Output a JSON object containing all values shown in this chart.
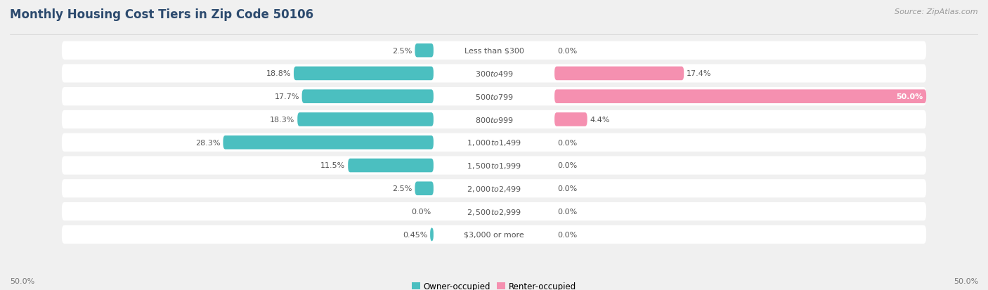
{
  "title": "Monthly Housing Cost Tiers in Zip Code 50106",
  "source": "Source: ZipAtlas.com",
  "categories": [
    "Less than $300",
    "$300 to $499",
    "$500 to $799",
    "$800 to $999",
    "$1,000 to $1,499",
    "$1,500 to $1,999",
    "$2,000 to $2,499",
    "$2,500 to $2,999",
    "$3,000 or more"
  ],
  "owner_values": [
    2.5,
    18.8,
    17.7,
    18.3,
    28.3,
    11.5,
    2.5,
    0.0,
    0.45
  ],
  "renter_values": [
    0.0,
    17.4,
    50.0,
    4.4,
    0.0,
    0.0,
    0.0,
    0.0,
    0.0
  ],
  "owner_color": "#4BBFC0",
  "renter_color": "#F590B0",
  "axis_max": 50.0,
  "bg_color": "#f0f0f0",
  "bar_bg_color": "#ffffff",
  "title_color": "#2c4a6e",
  "title_fontsize": 12,
  "source_fontsize": 8,
  "bar_label_fontsize": 8,
  "cat_label_fontsize": 8,
  "legend_labels": [
    "Owner-occupied",
    "Renter-occupied"
  ],
  "axis_label_left": "50.0%",
  "axis_label_right": "50.0%"
}
